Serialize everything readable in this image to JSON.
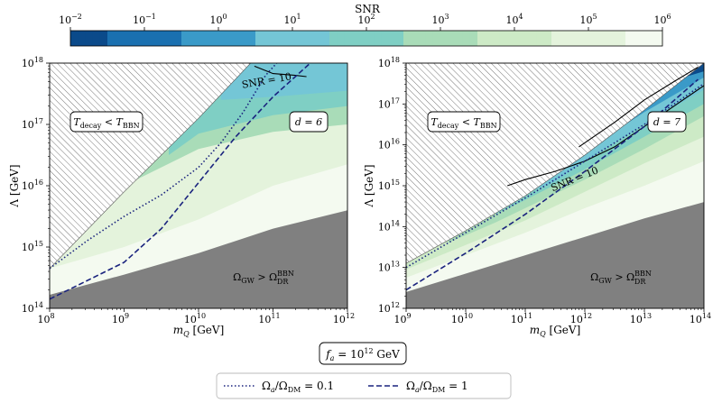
{
  "colorbar": {
    "title": "SNR",
    "ticks": [
      {
        "base": "10",
        "exp": "−2"
      },
      {
        "base": "10",
        "exp": "−1"
      },
      {
        "base": "10",
        "exp": "0"
      },
      {
        "base": "10",
        "exp": "1"
      },
      {
        "base": "10",
        "exp": "2"
      },
      {
        "base": "10",
        "exp": "3"
      },
      {
        "base": "10",
        "exp": "4"
      },
      {
        "base": "10",
        "exp": "5"
      },
      {
        "base": "10",
        "exp": "6"
      }
    ],
    "colors": [
      "#0b4a8a",
      "#1a70b0",
      "#3a9ac8",
      "#74c6d6",
      "#7fcfc4",
      "#a9dcb8",
      "#cdeac6",
      "#e4f3dc",
      "#f4faf0"
    ]
  },
  "chart_data": [
    {
      "type": "contour",
      "panel": "left",
      "label_d": "d = 6",
      "xlabel": "m_Q [GeV]",
      "ylabel": "Λ [GeV]",
      "x_log_range": [
        8,
        12
      ],
      "y_log_range": [
        14,
        18
      ],
      "x_ticks": [
        {
          "base": "10",
          "exp": "8"
        },
        {
          "base": "10",
          "exp": "9"
        },
        {
          "base": "10",
          "exp": "10"
        },
        {
          "base": "10",
          "exp": "11"
        },
        {
          "base": "10",
          "exp": "12"
        }
      ],
      "y_ticks": [
        {
          "base": "10",
          "exp": "14"
        },
        {
          "base": "10",
          "exp": "15"
        },
        {
          "base": "10",
          "exp": "16"
        },
        {
          "base": "10",
          "exp": "17"
        },
        {
          "base": "10",
          "exp": "18"
        }
      ],
      "hatched_region_label": "T_decay < T_BBN",
      "gray_region_label": "Ω_GW > Ω_DR^BBN",
      "snr_contour_label": "SNR = 10",
      "hatch_boundary": [
        [
          8,
          14.65
        ],
        [
          9,
          15.9
        ],
        [
          10,
          17.1
        ],
        [
          10.7,
          18
        ]
      ],
      "gray_boundary": [
        [
          8,
          14.22
        ],
        [
          9,
          14.55
        ],
        [
          10,
          14.9
        ],
        [
          11,
          15.3
        ],
        [
          12,
          15.6
        ]
      ],
      "snr_bands": [
        {
          "snr_log": 6,
          "boundary": [
            [
              8,
              14.65
            ],
            [
              9,
              15.0
            ],
            [
              10,
              15.45
            ],
            [
              11,
              16.0
            ],
            [
              12,
              16.35
            ]
          ]
        },
        {
          "snr_log": 4,
          "boundary": [
            [
              8,
              15.15
            ],
            [
              9,
              16.0
            ],
            [
              10,
              16.6
            ],
            [
              11,
              16.88
            ],
            [
              12,
              17.0
            ]
          ]
        },
        {
          "snr_log": 3,
          "boundary": [
            [
              9.6,
              16.5
            ],
            [
              10,
              16.85
            ],
            [
              11,
              17.15
            ],
            [
              12,
              17.3
            ]
          ]
        },
        {
          "snr_log": 2,
          "boundary": [
            [
              10.3,
              17.4
            ],
            [
              11,
              17.45
            ],
            [
              12,
              17.55
            ]
          ]
        },
        {
          "snr_log": 1,
          "boundary": [
            [
              10.7,
              18.0
            ],
            [
              11.3,
              18.0
            ]
          ]
        }
      ],
      "snr10_line": [
        [
          10.75,
          17.95
        ],
        [
          11,
          17.83
        ],
        [
          11.3,
          17.8
        ],
        [
          11.45,
          17.78
        ]
      ],
      "lines": [
        {
          "name": "Ω_a/Ω_DM = 0.1",
          "style": "dotted",
          "points": [
            [
              8,
              14.65
            ],
            [
              8.5,
              15.1
            ],
            [
              9,
              15.5
            ],
            [
              9.5,
              15.85
            ],
            [
              10,
              16.3
            ],
            [
              10.3,
              16.7
            ],
            [
              10.6,
              17.2
            ],
            [
              10.9,
              17.8
            ],
            [
              11.05,
              18
            ]
          ]
        },
        {
          "name": "Ω_a/Ω_DM = 1",
          "style": "dashed",
          "points": [
            [
              8,
              14.15
            ],
            [
              8.5,
              14.45
            ],
            [
              9,
              14.75
            ],
            [
              9.5,
              15.3
            ],
            [
              10,
              16.05
            ],
            [
              10.5,
              16.8
            ],
            [
              11,
              17.45
            ],
            [
              11.5,
              18
            ]
          ]
        }
      ]
    },
    {
      "type": "contour",
      "panel": "right",
      "label_d": "d = 7",
      "xlabel": "m_Q [GeV]",
      "ylabel": "Λ [GeV]",
      "x_log_range": [
        9,
        14
      ],
      "y_log_range": [
        12,
        18
      ],
      "x_ticks": [
        {
          "base": "10",
          "exp": "9"
        },
        {
          "base": "10",
          "exp": "10"
        },
        {
          "base": "10",
          "exp": "11"
        },
        {
          "base": "10",
          "exp": "12"
        },
        {
          "base": "10",
          "exp": "13"
        },
        {
          "base": "10",
          "exp": "14"
        }
      ],
      "y_ticks": [
        {
          "base": "10",
          "exp": "12"
        },
        {
          "base": "10",
          "exp": "13"
        },
        {
          "base": "10",
          "exp": "14"
        },
        {
          "base": "10",
          "exp": "15"
        },
        {
          "base": "10",
          "exp": "16"
        },
        {
          "base": "10",
          "exp": "17"
        },
        {
          "base": "10",
          "exp": "18"
        }
      ],
      "hatched_region_label": "T_decay < T_BBN",
      "gray_region_label": "Ω_GW > Ω_DR^BBN",
      "snr_contour_label": "SNR = 10",
      "hatch_boundary": [
        [
          9,
          13.1
        ],
        [
          10,
          13.9
        ],
        [
          11,
          14.75
        ],
        [
          12,
          15.75
        ],
        [
          13,
          16.85
        ],
        [
          14,
          18
        ]
      ],
      "gray_boundary": [
        [
          9,
          12.4
        ],
        [
          10,
          12.85
        ],
        [
          11,
          13.3
        ],
        [
          12,
          13.75
        ],
        [
          13,
          14.2
        ],
        [
          14,
          14.6
        ]
      ],
      "snr_bands": [
        {
          "snr_log": 6,
          "boundary": [
            [
              9,
              12.75
            ],
            [
              10,
              13.3
            ],
            [
              11,
              13.85
            ],
            [
              12,
              14.45
            ],
            [
              13,
              15.0
            ],
            [
              14,
              15.6
            ]
          ]
        },
        {
          "snr_log": 5,
          "boundary": [
            [
              9,
              12.95
            ],
            [
              10,
              13.55
            ],
            [
              11,
              14.15
            ],
            [
              12,
              14.85
            ],
            [
              13,
              15.55
            ],
            [
              14,
              16.2
            ]
          ]
        },
        {
          "snr_log": 4,
          "boundary": [
            [
              9.7,
              13.6
            ],
            [
              10.5,
              14.1
            ],
            [
              11,
              14.45
            ],
            [
              12,
              15.15
            ],
            [
              13,
              15.9
            ],
            [
              14,
              16.7
            ]
          ]
        },
        {
          "snr_log": 3,
          "boundary": [
            [
              10.5,
              14.3
            ],
            [
              11,
              14.65
            ],
            [
              12,
              15.4
            ],
            [
              13,
              16.2
            ],
            [
              14,
              17.0
            ]
          ]
        },
        {
          "snr_log": 2,
          "boundary": [
            [
              10.9,
              14.75
            ],
            [
              11.5,
              15.1
            ],
            [
              12,
              15.6
            ],
            [
              13,
              16.5
            ],
            [
              14,
              17.35
            ]
          ]
        },
        {
          "snr_log": 1,
          "boundary": [
            [
              11.4,
              15.3
            ],
            [
              12,
              15.85
            ],
            [
              13,
              16.8
            ],
            [
              14,
              17.65
            ]
          ]
        },
        {
          "snr_log": 0,
          "boundary": [
            [
              12,
              16.3
            ],
            [
              13,
              17.2
            ],
            [
              13.8,
              17.9
            ],
            [
              14,
              17.95
            ]
          ]
        },
        {
          "snr_log": -1,
          "boundary": [
            [
              12.7,
              17.05
            ],
            [
              13.2,
              17.45
            ],
            [
              14,
              17.8
            ]
          ]
        }
      ],
      "snr10_lines": [
        [
          [
            10.7,
            15.0
          ],
          [
            11,
            15.15
          ],
          [
            11.5,
            15.35
          ],
          [
            12,
            15.6
          ],
          [
            12.5,
            15.95
          ],
          [
            13,
            16.45
          ],
          [
            13.5,
            16.95
          ],
          [
            14,
            17.45
          ]
        ],
        [
          [
            11.9,
            15.95
          ],
          [
            12.5,
            16.55
          ],
          [
            13,
            17.1
          ],
          [
            13.5,
            17.55
          ],
          [
            13.9,
            17.9
          ]
        ]
      ],
      "lines": [
        {
          "name": "Ω_a/Ω_DM = 0.1",
          "style": "dotted",
          "points": [
            [
              9,
              13.0
            ],
            [
              10,
              13.85
            ],
            [
              11,
              14.7
            ],
            [
              12,
              15.6
            ],
            [
              13,
              16.5
            ],
            [
              13.7,
              17.2
            ],
            [
              14,
              17.5
            ]
          ]
        },
        {
          "name": "Ω_a/Ω_DM = 1",
          "style": "dashed",
          "points": [
            [
              9,
              12.45
            ],
            [
              10,
              13.35
            ],
            [
              11,
              14.3
            ],
            [
              12,
              15.35
            ],
            [
              13,
              16.45
            ],
            [
              13.9,
              17.6
            ]
          ]
        }
      ]
    }
  ],
  "fa_box": "f_a = 10^12 GeV",
  "legend": [
    {
      "label": "Ω_a/Ω_DM = 0.1",
      "style": "dotted"
    },
    {
      "label": "Ω_a/Ω_DM = 1",
      "style": "dashed"
    }
  ],
  "text": {
    "mq": "m",
    "mq_sub": "Q",
    "gev": "[GeV]",
    "lambda": "Λ",
    "tdecay": "T",
    "tdecay_sub": "decay",
    "tbbn_sub": "BBN",
    "lt": "<",
    "omega_gw": "Ω",
    "gw_sub": "GW",
    "gt": ">",
    "dr_sub": "DR",
    "bbn_sup": "BBN",
    "snr10": "SNR = 10",
    "d6": "d = 6",
    "d7": "d = 7",
    "fa": "f",
    "fa_sub": "a",
    "fa_rest": " = 10",
    "fa_exp": "12",
    "fa_unit": " GeV",
    "leg1": "Ω",
    "leg1_sub_a": "a",
    "leg1_slash": "/Ω",
    "leg1_sub_dm": "DM",
    "leg1_val": " = 0.1",
    "leg2_val": " = 1"
  }
}
